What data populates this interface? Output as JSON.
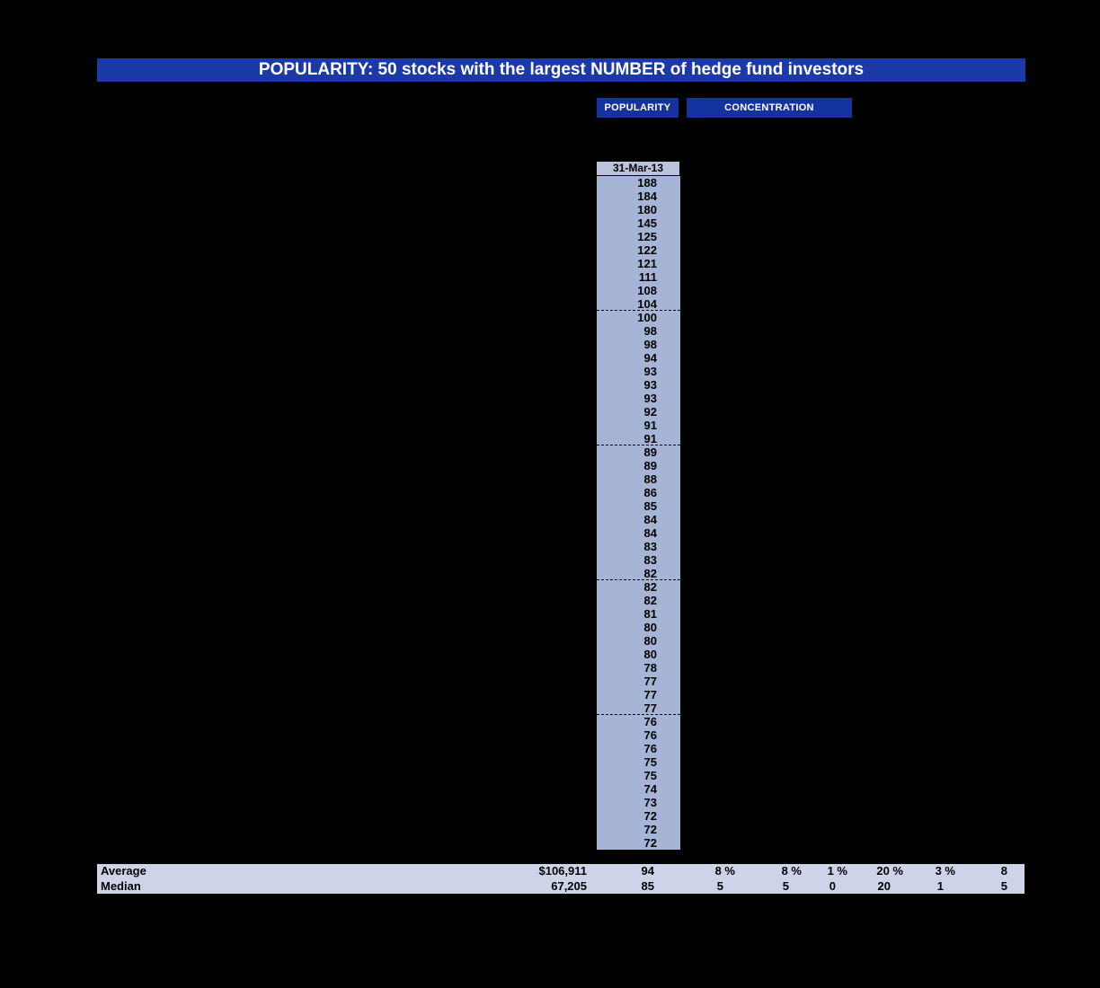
{
  "title": {
    "text": "POPULARITY: 50 stocks with the largest NUMBER of hedge fund investors"
  },
  "tabs": {
    "popularity": "POPULARITY",
    "concentration": "CONCENTRATION"
  },
  "column": {
    "header": "31-Mar-13",
    "values": [
      "188",
      "184",
      "180",
      "145",
      "125",
      "122",
      "121",
      "111",
      "108",
      "104",
      "100",
      "98",
      "98",
      "94",
      "93",
      "93",
      "93",
      "92",
      "91",
      "91",
      "89",
      "89",
      "88",
      "86",
      "85",
      "84",
      "84",
      "83",
      "83",
      "82",
      "82",
      "82",
      "81",
      "80",
      "80",
      "80",
      "78",
      "77",
      "77",
      "77",
      "76",
      "76",
      "76",
      "75",
      "75",
      "74",
      "73",
      "72",
      "72",
      "72"
    ]
  },
  "summary": {
    "average": {
      "label": "Average",
      "values": [
        "$106,911",
        "94",
        "8 %",
        "8 %",
        "1 %",
        "20 %",
        "3 %",
        "8"
      ]
    },
    "median": {
      "label": "Median",
      "values": [
        "67,205",
        "85",
        "5",
        "5",
        "0",
        "20",
        "1",
        "5"
      ]
    }
  },
  "colors": {
    "page_bg": "#000000",
    "title_bar_blue": "#1b3aa8",
    "button_blue": "#14339f",
    "column_bg": "#a6b4d6",
    "column_header_bg": "#bac3da",
    "summary_band_bg": "#cdd4e9",
    "text_dark": "#000000",
    "text_light": "#ffffff"
  }
}
